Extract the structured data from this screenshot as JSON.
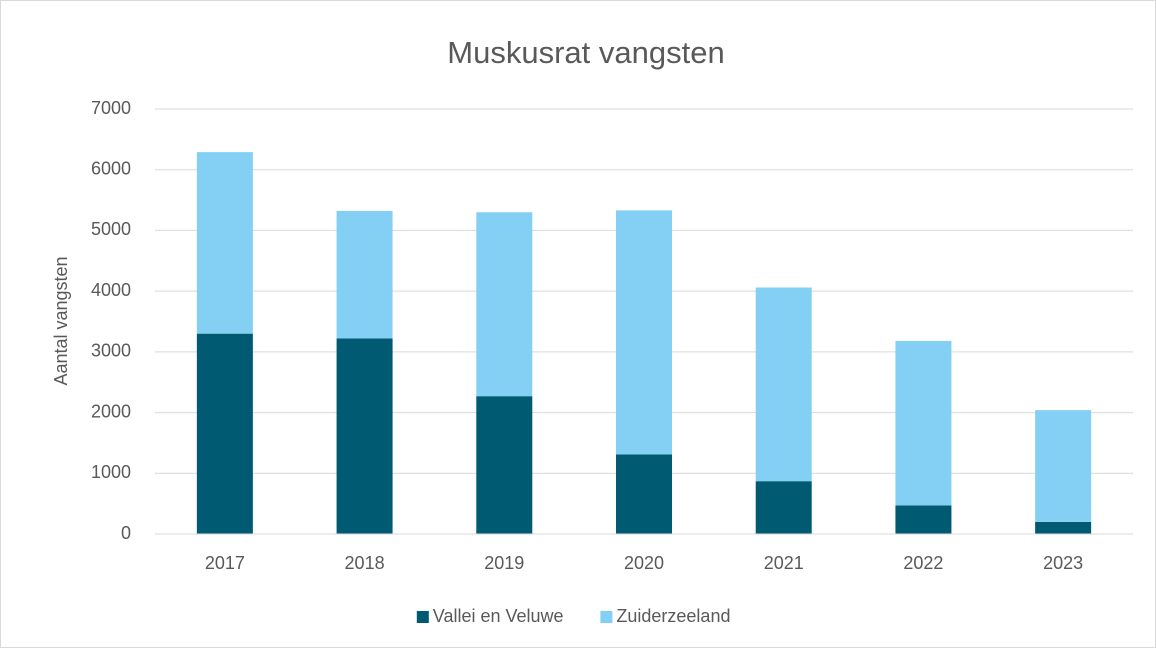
{
  "chart_data": {
    "type": "stacked_bar",
    "title": "Muskusrat vangsten",
    "y_label": "Aantal vangsten",
    "categories": [
      "2017",
      "2018",
      "2019",
      "2020",
      "2021",
      "2022",
      "2023"
    ],
    "series": [
      {
        "name": "Vallei en Veluwe",
        "color": "#005a72",
        "values": [
          3300,
          3220,
          2270,
          1310,
          870,
          470,
          200
        ]
      },
      {
        "name": "Zuiderzeeland",
        "color": "#84d0f5",
        "values": [
          2990,
          2100,
          3030,
          4020,
          3190,
          2710,
          1840
        ]
      }
    ],
    "ylim": [
      0,
      7000
    ],
    "yticks": [
      0,
      1000,
      2000,
      3000,
      4000,
      5000,
      6000,
      7000
    ],
    "grid": true,
    "legend": "bottom"
  }
}
